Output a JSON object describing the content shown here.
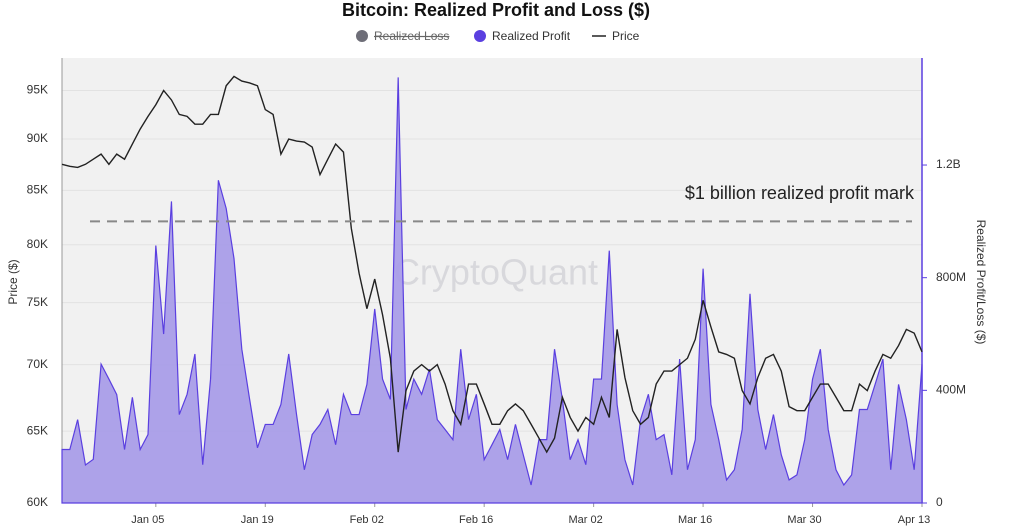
{
  "chart_data": {
    "type": "area_line",
    "title": "Bitcoin: Realized Profit and Loss ($)",
    "watermark": "CryptoQuant",
    "ylabel": "Price ($)",
    "y2label": "Realized Profit/Loss ($)",
    "hidden_series": [
      {
        "name": "Realized Loss",
        "color": "#6e6e78"
      }
    ],
    "categories": [
      null,
      null,
      null,
      null,
      null,
      null,
      null,
      null,
      null,
      null,
      null,
      null,
      "Jan 05",
      null,
      null,
      null,
      null,
      null,
      null,
      null,
      null,
      null,
      null,
      null,
      null,
      null,
      "Jan 19",
      null,
      null,
      null,
      null,
      null,
      null,
      null,
      null,
      null,
      null,
      null,
      null,
      null,
      "Feb 02",
      null,
      null,
      null,
      null,
      null,
      null,
      null,
      null,
      null,
      null,
      null,
      null,
      null,
      "Feb 16",
      null,
      null,
      null,
      null,
      null,
      null,
      null,
      null,
      null,
      null,
      null,
      null,
      null,
      "Mar 02",
      null,
      null,
      null,
      null,
      null,
      null,
      null,
      null,
      null,
      null,
      null,
      null,
      null,
      "Mar 16",
      null,
      null,
      null,
      null,
      null,
      null,
      null,
      null,
      null,
      null,
      null,
      null,
      null,
      "Mar 30",
      null,
      null,
      null,
      null,
      null,
      null,
      null,
      null,
      null,
      null,
      null,
      null,
      null,
      "Apr 13"
    ],
    "series": [
      {
        "name": "Realized Profit",
        "type": "area",
        "axis": "y2",
        "color": "#5a3fe0",
        "fill": "#a99de8",
        "values": [
          190000000,
          190000000,
          296000000,
          135000000,
          155000000,
          493000000,
          440000000,
          385000000,
          190000000,
          375000000,
          190000000,
          243000000,
          914000000,
          600000000,
          1071000000,
          314000000,
          386000000,
          529000000,
          136000000,
          440000000,
          1146000000,
          1046000000,
          868000000,
          546000000,
          368000000,
          196000000,
          279000000,
          279000000,
          350000000,
          529000000,
          314000000,
          118000000,
          243000000,
          279000000,
          332000000,
          207000000,
          386000000,
          314000000,
          314000000,
          421000000,
          689000000,
          440000000,
          368000000,
          1511000000,
          332000000,
          440000000,
          386000000,
          475000000,
          296000000,
          261000000,
          225000000,
          546000000,
          296000000,
          386000000,
          154000000,
          207000000,
          261000000,
          154000000,
          279000000,
          171000000,
          64000000,
          225000000,
          225000000,
          546000000,
          368000000,
          154000000,
          225000000,
          136000000,
          440000000,
          440000000,
          896000000,
          350000000,
          154000000,
          64000000,
          296000000,
          386000000,
          225000000,
          243000000,
          100000000,
          511000000,
          118000000,
          225000000,
          832000000,
          350000000,
          225000000,
          82000000,
          118000000,
          261000000,
          743000000,
          332000000,
          190000000,
          314000000,
          171000000,
          82000000,
          100000000,
          225000000,
          440000000,
          546000000,
          261000000,
          118000000,
          64000000,
          100000000,
          332000000,
          332000000,
          421000000,
          511000000,
          118000000,
          421000000,
          296000000,
          118000000,
          493000000
        ]
      },
      {
        "name": "Price",
        "type": "line",
        "axis": "y",
        "color": "#222222",
        "values": [
          87500,
          87300,
          87200,
          87500,
          88000,
          88500,
          87500,
          88500,
          88000,
          89500,
          91000,
          92300,
          93500,
          95000,
          94000,
          92500,
          92300,
          91500,
          91500,
          92500,
          92500,
          95500,
          96500,
          96000,
          95800,
          95500,
          93000,
          92500,
          88500,
          90000,
          89800,
          89700,
          89200,
          86500,
          88000,
          89500,
          88700,
          81500,
          77500,
          74500,
          77000,
          74000,
          70500,
          63500,
          68000,
          69500,
          70000,
          69500,
          70000,
          68500,
          66500,
          65500,
          68500,
          68500,
          67000,
          65500,
          65500,
          66500,
          67000,
          66500,
          65500,
          64500,
          63500,
          64500,
          67500,
          66000,
          65000,
          66000,
          65500,
          67500,
          66000,
          72800,
          69000,
          66500,
          65500,
          66000,
          68500,
          69500,
          69500,
          70000,
          70500,
          72000,
          75200,
          73000,
          71000,
          70800,
          70500,
          68000,
          67000,
          69000,
          70500,
          70800,
          69500,
          66800,
          66500,
          66500,
          67500,
          68500,
          68500,
          67500,
          66500,
          66500,
          68500,
          68000,
          69500,
          70800,
          70500,
          71500,
          72800,
          72500,
          71000
        ]
      }
    ],
    "ylim": [
      60000,
      98500
    ],
    "ylog": true,
    "yticks": [
      {
        "value": 60000,
        "label": "60K"
      },
      {
        "value": 65000,
        "label": "65K"
      },
      {
        "value": 70000,
        "label": "70K"
      },
      {
        "value": 75000,
        "label": "75K"
      },
      {
        "value": 80000,
        "label": "80K"
      },
      {
        "value": 85000,
        "label": "85K"
      },
      {
        "value": 90000,
        "label": "90K"
      },
      {
        "value": 95000,
        "label": "95K"
      }
    ],
    "y2lim": [
      0,
      1580000000
    ],
    "y2ticks": [
      0,
      {
        "value": 400000000,
        "label": "400M"
      },
      {
        "value": 800000000,
        "label": "800M"
      },
      {
        "value": 1200000000,
        "label": "1.2B"
      }
    ],
    "reference_line": {
      "axis": "y2",
      "value": 1000000000,
      "label": "$1 billion realized profit mark"
    },
    "grid": true
  }
}
